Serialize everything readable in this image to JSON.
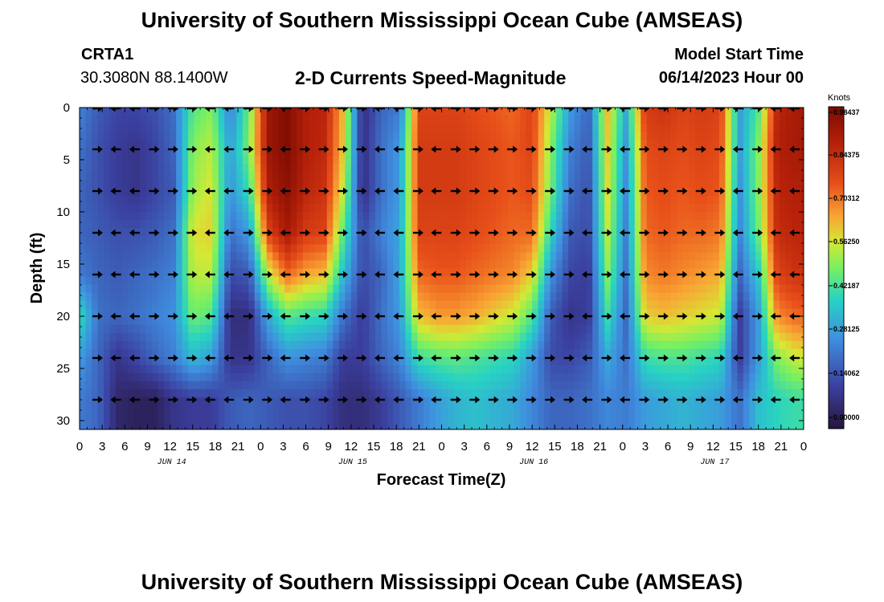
{
  "header": {
    "title": "University of Southern Mississippi Ocean Cube (AMSEAS)",
    "station": "CRTA1",
    "coords": "30.3080N  88.1400W",
    "plot_title": "2-D Currents Speed-Magnitude",
    "model_start_label": "Model Start Time",
    "model_start_value": "06/14/2023 Hour 00"
  },
  "footer": {
    "title": "University of Southern Mississippi Ocean Cube (AMSEAS)"
  },
  "chart_data": {
    "type": "heatmap",
    "title": "2-D Currents Speed-Magnitude",
    "xlabel": "Forecast Time(Z)",
    "ylabel": "Depth (ft)",
    "x_tick_labels": [
      "0",
      "3",
      "6",
      "9",
      "12",
      "15",
      "18",
      "21",
      "0",
      "3",
      "6",
      "9",
      "12",
      "15",
      "18",
      "21",
      "0",
      "3",
      "6",
      "9",
      "12",
      "15",
      "18",
      "21",
      "0",
      "3",
      "6",
      "9",
      "12",
      "15",
      "18",
      "21",
      "0"
    ],
    "day_labels": [
      "JUN 14",
      "JUN 15",
      "JUN 16",
      "JUN 17"
    ],
    "xlim_hours": [
      0,
      96
    ],
    "ylim_ft": [
      0,
      31
    ],
    "y_ticks": [
      0,
      5,
      10,
      15,
      20,
      25,
      30
    ],
    "colorbar": {
      "unit": "Knots",
      "range": [
        0,
        0.98437
      ],
      "tick_labels": [
        "0.98437",
        "0.84375",
        "0.70312",
        "0.56250",
        "0.42187",
        "0.28125",
        "0.14062",
        "0.00000"
      ],
      "tick_values": [
        0.98437,
        0.84375,
        0.70312,
        0.5625,
        0.42187,
        0.28125,
        0.14062,
        0.0
      ]
    },
    "arrow_depths_ft": [
      0,
      4,
      8,
      12,
      16,
      20,
      24,
      28
    ],
    "column_times_hr": [
      0,
      2.5,
      5,
      7.5,
      10,
      12.5,
      15,
      17.5,
      20,
      22.5,
      25,
      27.5,
      30,
      32.5,
      35,
      37.5,
      40,
      42.5,
      45,
      47.5,
      50,
      52.5,
      55,
      57.5,
      60,
      62.5,
      65,
      67.5,
      70,
      72.5,
      75,
      77.5,
      80,
      82.5,
      85,
      87.5,
      90,
      92.5,
      95
    ],
    "speed_knots_by_depth": [
      [
        0.25,
        0.18,
        0.14,
        0.14,
        0.16,
        0.22,
        0.45,
        0.5,
        0.25,
        0.48,
        0.92,
        0.97,
        0.88,
        0.86,
        0.62,
        0.08,
        0.2,
        0.24,
        0.78,
        0.78,
        0.78,
        0.76,
        0.74,
        0.72,
        0.78,
        0.55,
        0.3,
        0.2,
        0.62,
        0.32,
        0.8,
        0.82,
        0.78,
        0.8,
        0.78,
        0.3,
        0.45,
        0.86,
        0.9
      ],
      [
        0.22,
        0.16,
        0.12,
        0.1,
        0.14,
        0.2,
        0.5,
        0.55,
        0.3,
        0.5,
        0.92,
        0.97,
        0.88,
        0.85,
        0.6,
        0.08,
        0.22,
        0.3,
        0.8,
        0.8,
        0.8,
        0.78,
        0.76,
        0.74,
        0.78,
        0.5,
        0.25,
        0.18,
        0.6,
        0.28,
        0.76,
        0.78,
        0.76,
        0.78,
        0.76,
        0.3,
        0.5,
        0.88,
        0.9
      ],
      [
        0.2,
        0.16,
        0.12,
        0.1,
        0.14,
        0.18,
        0.52,
        0.58,
        0.28,
        0.42,
        0.88,
        0.95,
        0.86,
        0.82,
        0.55,
        0.08,
        0.22,
        0.3,
        0.8,
        0.8,
        0.8,
        0.78,
        0.76,
        0.74,
        0.76,
        0.48,
        0.22,
        0.16,
        0.58,
        0.26,
        0.74,
        0.76,
        0.74,
        0.76,
        0.74,
        0.28,
        0.5,
        0.86,
        0.88
      ],
      [
        0.2,
        0.18,
        0.16,
        0.16,
        0.18,
        0.22,
        0.58,
        0.6,
        0.22,
        0.3,
        0.78,
        0.9,
        0.8,
        0.78,
        0.45,
        0.15,
        0.25,
        0.32,
        0.78,
        0.78,
        0.78,
        0.76,
        0.74,
        0.72,
        0.72,
        0.4,
        0.18,
        0.15,
        0.55,
        0.24,
        0.72,
        0.74,
        0.72,
        0.72,
        0.7,
        0.26,
        0.48,
        0.84,
        0.86
      ],
      [
        0.24,
        0.2,
        0.18,
        0.2,
        0.22,
        0.25,
        0.55,
        0.55,
        0.15,
        0.18,
        0.55,
        0.72,
        0.65,
        0.62,
        0.35,
        0.15,
        0.2,
        0.32,
        0.72,
        0.74,
        0.74,
        0.72,
        0.7,
        0.68,
        0.6,
        0.28,
        0.14,
        0.12,
        0.5,
        0.22,
        0.68,
        0.7,
        0.68,
        0.66,
        0.64,
        0.2,
        0.38,
        0.78,
        0.82
      ],
      [
        0.42,
        0.22,
        0.2,
        0.22,
        0.25,
        0.28,
        0.48,
        0.45,
        0.08,
        0.08,
        0.32,
        0.45,
        0.42,
        0.4,
        0.22,
        0.12,
        0.22,
        0.3,
        0.62,
        0.66,
        0.66,
        0.64,
        0.6,
        0.56,
        0.45,
        0.18,
        0.1,
        0.12,
        0.42,
        0.2,
        0.6,
        0.62,
        0.6,
        0.58,
        0.56,
        0.12,
        0.3,
        0.68,
        0.72
      ],
      [
        0.3,
        0.2,
        0.1,
        0.14,
        0.2,
        0.25,
        0.35,
        0.3,
        0.1,
        0.1,
        0.2,
        0.28,
        0.26,
        0.24,
        0.12,
        0.12,
        0.2,
        0.26,
        0.42,
        0.45,
        0.46,
        0.44,
        0.42,
        0.4,
        0.3,
        0.15,
        0.14,
        0.18,
        0.32,
        0.22,
        0.42,
        0.44,
        0.44,
        0.42,
        0.4,
        0.12,
        0.3,
        0.5,
        0.56
      ],
      [
        0.24,
        0.2,
        0.06,
        0.04,
        0.04,
        0.1,
        0.12,
        0.12,
        0.18,
        0.2,
        0.18,
        0.16,
        0.16,
        0.14,
        0.08,
        0.08,
        0.12,
        0.18,
        0.24,
        0.3,
        0.34,
        0.36,
        0.34,
        0.32,
        0.26,
        0.2,
        0.2,
        0.22,
        0.26,
        0.24,
        0.3,
        0.32,
        0.34,
        0.32,
        0.3,
        0.22,
        0.36,
        0.4,
        0.42
      ]
    ]
  }
}
